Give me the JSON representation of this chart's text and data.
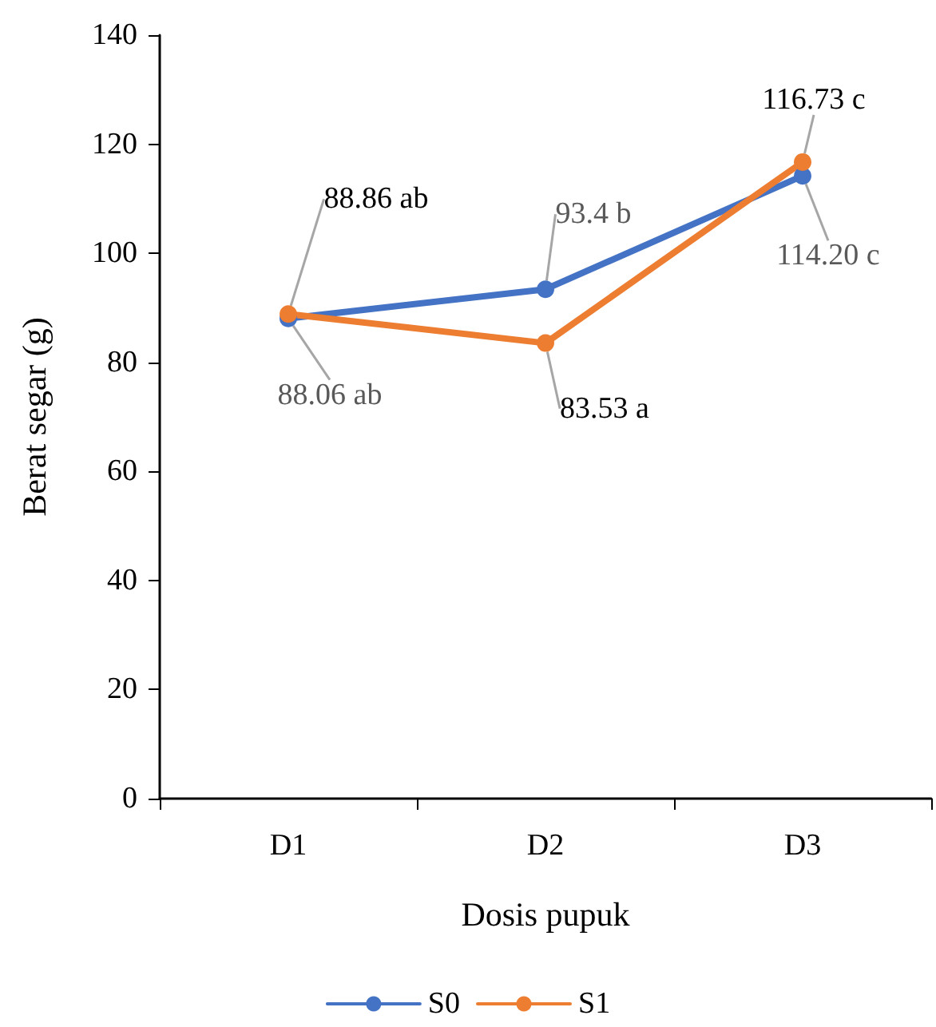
{
  "chart_data": {
    "type": "line",
    "xlabel": "Dosis pupuk",
    "ylabel": "Berat segar (g)",
    "categories": [
      "D1",
      "D2",
      "D3"
    ],
    "series": [
      {
        "name": "S0",
        "color": "#4472c4",
        "values": [
          88.06,
          93.4,
          114.2
        ],
        "value_labels": [
          "88.06 ab",
          "93.4 b",
          "114.20 c"
        ]
      },
      {
        "name": "S1",
        "color": "#ed7d31",
        "values": [
          88.86,
          83.53,
          116.73
        ],
        "value_labels": [
          "88.86 ab",
          "83.53 a",
          "116.73 c"
        ]
      }
    ],
    "ylim": [
      0,
      140
    ],
    "yticks": [
      0,
      20,
      40,
      60,
      80,
      100,
      120,
      140
    ],
    "grid": false,
    "legend": "bottom",
    "marker": "circle",
    "line_style": "solid"
  }
}
